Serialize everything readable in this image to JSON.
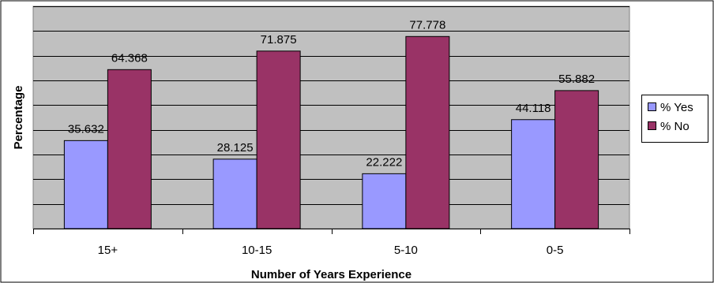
{
  "chart_data": {
    "type": "bar",
    "title": "",
    "xlabel": "Number of Years Experience",
    "ylabel": "Percentage",
    "categories": [
      "15+",
      "10-15",
      "5-10",
      "0-5"
    ],
    "series": [
      {
        "name": "% Yes",
        "color": "#9999ff",
        "values": [
          35.632,
          28.125,
          22.222,
          44.118
        ],
        "labels": [
          "35.632",
          "28.125",
          "22.222",
          "44.118"
        ]
      },
      {
        "name": "% No",
        "color": "#993366",
        "values": [
          64.368,
          71.875,
          77.778,
          55.882
        ],
        "labels": [
          "64.368",
          "71.875",
          "77.778",
          "55.882"
        ]
      }
    ],
    "ylim": [
      0,
      90
    ],
    "y_gridline_step": 10,
    "grid": true,
    "plot_background": "#c0c0c0",
    "legend_position": "right",
    "show_y_tick_labels": false
  }
}
